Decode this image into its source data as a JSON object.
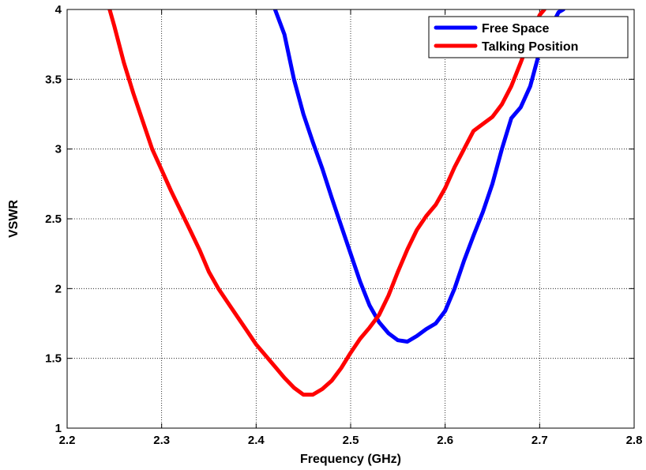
{
  "chart_data": {
    "type": "line",
    "title": "",
    "xlabel": "Frequency (GHz)",
    "ylabel": "VSWR",
    "xlim": [
      2.2,
      2.8
    ],
    "ylim": [
      1,
      4
    ],
    "xticks": [
      2.2,
      2.3,
      2.4,
      2.5,
      2.6,
      2.7,
      2.8
    ],
    "xtick_labels": [
      "2.2",
      "2.3",
      "2.4",
      "2.5",
      "2.6",
      "2.7",
      "2.8"
    ],
    "yticks": [
      1,
      1.5,
      2,
      2.5,
      3,
      3.5,
      4
    ],
    "ytick_labels": [
      "1",
      "1.5",
      "2",
      "2.5",
      "3",
      "3.5",
      "4"
    ],
    "grid": true,
    "legend_position": "top-right",
    "series": [
      {
        "name": "Free Space",
        "color": "#0000ff",
        "x": [
          2.42,
          2.43,
          2.44,
          2.45,
          2.46,
          2.47,
          2.48,
          2.49,
          2.5,
          2.51,
          2.52,
          2.53,
          2.54,
          2.55,
          2.56,
          2.57,
          2.58,
          2.59,
          2.6,
          2.61,
          2.62,
          2.63,
          2.64,
          2.65,
          2.66,
          2.67,
          2.68,
          2.69,
          2.7,
          2.71,
          2.72,
          2.725
        ],
        "y": [
          4.0,
          3.82,
          3.5,
          3.25,
          3.05,
          2.86,
          2.65,
          2.45,
          2.25,
          2.05,
          1.88,
          1.76,
          1.68,
          1.63,
          1.62,
          1.66,
          1.71,
          1.75,
          1.84,
          2.0,
          2.2,
          2.38,
          2.55,
          2.75,
          3.0,
          3.22,
          3.3,
          3.45,
          3.7,
          3.85,
          3.98,
          4.0
        ]
      },
      {
        "name": "Talking Position",
        "color": "#ff0000",
        "x": [
          2.245,
          2.25,
          2.26,
          2.27,
          2.28,
          2.29,
          2.3,
          2.31,
          2.32,
          2.33,
          2.34,
          2.35,
          2.36,
          2.37,
          2.38,
          2.39,
          2.4,
          2.41,
          2.42,
          2.43,
          2.44,
          2.45,
          2.46,
          2.47,
          2.48,
          2.49,
          2.5,
          2.51,
          2.52,
          2.53,
          2.54,
          2.55,
          2.56,
          2.57,
          2.58,
          2.59,
          2.6,
          2.61,
          2.62,
          2.63,
          2.64,
          2.65,
          2.66,
          2.67,
          2.68,
          2.69,
          2.7,
          2.705
        ],
        "y": [
          4.0,
          3.88,
          3.62,
          3.4,
          3.2,
          3.0,
          2.85,
          2.7,
          2.56,
          2.42,
          2.28,
          2.12,
          2.0,
          1.9,
          1.8,
          1.7,
          1.6,
          1.52,
          1.44,
          1.36,
          1.29,
          1.24,
          1.24,
          1.28,
          1.34,
          1.43,
          1.54,
          1.64,
          1.72,
          1.81,
          1.95,
          2.12,
          2.28,
          2.42,
          2.52,
          2.6,
          2.72,
          2.87,
          3.0,
          3.13,
          3.18,
          3.23,
          3.32,
          3.45,
          3.62,
          3.8,
          3.96,
          4.0
        ]
      }
    ]
  }
}
